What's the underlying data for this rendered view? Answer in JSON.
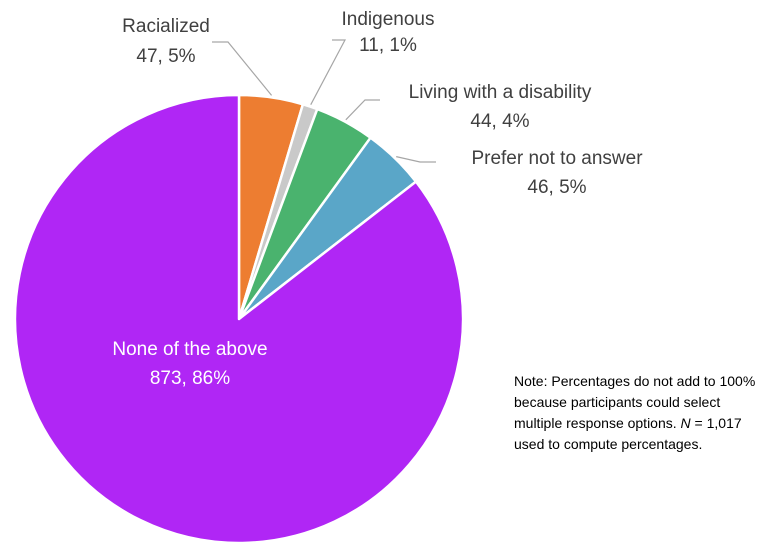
{
  "chart_data": {
    "type": "pie",
    "categories": [
      "Racialized",
      "Indigenous",
      "Living with a disability",
      "Prefer not to answer",
      "None of the above"
    ],
    "values": [
      47,
      11,
      44,
      46,
      873
    ],
    "percent_labels": [
      "5%",
      "1%",
      "4%",
      "5%",
      "86%"
    ],
    "value_labels": [
      "47, 5%",
      "11, 1%",
      "44, 4%",
      "46, 5%",
      "873, 86%"
    ],
    "colors": [
      "#ed7d31",
      "#c9c9c9",
      "#4ab36e",
      "#5aa6c8",
      "#b026f5"
    ],
    "start_angle_deg": 0,
    "direction": "clockwise"
  },
  "note": {
    "prefix": "Note: Percentages do not add to 100% because participants could select multiple response options.",
    "n_symbol": "N",
    "suffix": " = 1,017 used to compute percentages."
  }
}
